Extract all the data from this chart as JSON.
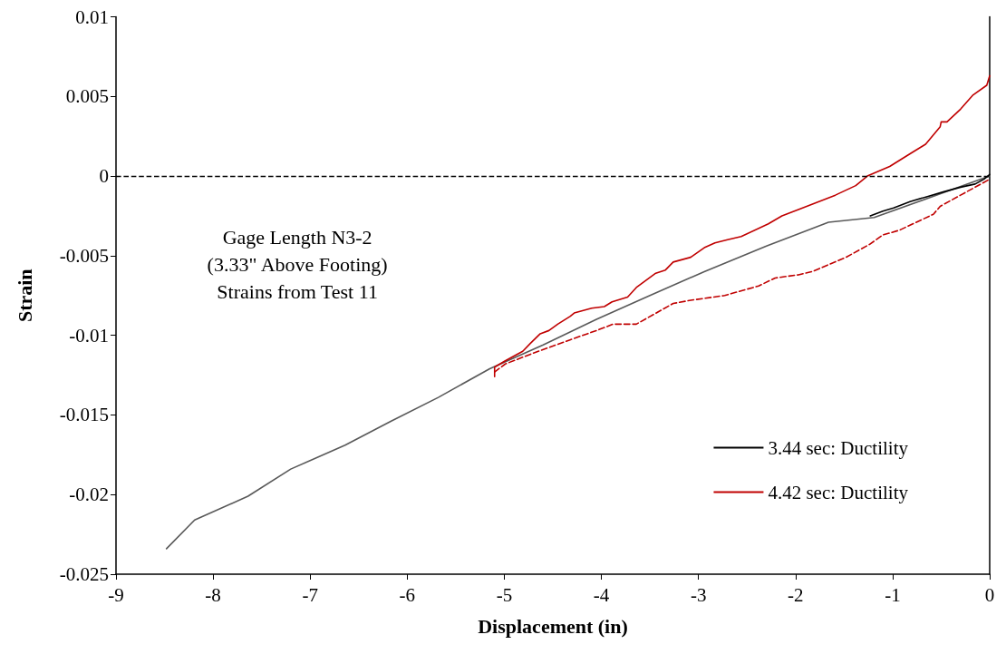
{
  "chart_data": {
    "type": "line",
    "xlabel": "Displacement (in)",
    "ylabel": "Strain",
    "xlim": [
      -9,
      0
    ],
    "xticks": [
      -9,
      -8,
      -7,
      -6,
      -5,
      -4,
      -3,
      -2,
      -1,
      0
    ],
    "ylim": [
      -0.025,
      0.01
    ],
    "yticks": [
      -0.025,
      -0.02,
      -0.015,
      -0.01,
      -0.005,
      0,
      0.005,
      0.01
    ],
    "grid": false,
    "legend": "right",
    "marker": "none",
    "annotations": [
      "Gage Length N3-2\n(3.33\" Above Footing)\nStrains from Test 11"
    ],
    "ref_lines": [
      {
        "axis": "y",
        "value": 0,
        "color": "#000000",
        "line_style": "dashed"
      }
    ],
    "series": [
      {
        "color": "#595959",
        "x": [
          -8.48,
          -8.19,
          -7.64,
          -7.2,
          -6.64,
          -6.17,
          -5.68,
          -5.15,
          -4.6,
          -4.05,
          -3.5,
          -2.94,
          -2.3,
          -1.66,
          -1.19,
          0
        ],
        "values": [
          -0.0234,
          -0.0216,
          -0.0201,
          -0.0184,
          -0.0169,
          -0.0154,
          -0.0139,
          -0.0121,
          -0.0106,
          -0.009,
          -0.0075,
          -0.006,
          -0.0044,
          -0.0029,
          -0.0026,
          0
        ]
      },
      {
        "name": "3.44 sec: Ductility",
        "color": "#000000",
        "x": [
          -1.23,
          -1.1,
          -0.99,
          -0.82,
          -0.65,
          -0.48,
          -0.3,
          -0.15,
          -0.06,
          0
        ],
        "values": [
          -0.0025,
          -0.0022,
          -0.002,
          -0.0016,
          -0.0013,
          -0.001,
          -0.0007,
          -0.0005,
          -0.0002,
          0.0001
        ]
      },
      {
        "name": "4.42 sec: Ductility",
        "color": "#c00000",
        "x": [
          -5.1,
          -5.1,
          -4.99,
          -4.81,
          -4.73,
          -4.63,
          -4.54,
          -4.45,
          -4.32,
          -4.28,
          -4.1,
          -3.97,
          -3.89,
          -3.73,
          -3.64,
          -3.44,
          -3.34,
          -3.26,
          -3.08,
          -2.94,
          -2.83,
          -2.7,
          -2.56,
          -2.28,
          -2.14,
          -1.97,
          -1.59,
          -1.45,
          -1.38,
          -1.26,
          -1.03,
          -0.82,
          -0.66,
          -0.51,
          -0.5,
          -0.44,
          -0.3,
          -0.17,
          -0.03,
          0
        ],
        "values": [
          -0.0126,
          -0.012,
          -0.0116,
          -0.011,
          -0.0105,
          -0.0099,
          -0.0097,
          -0.0093,
          -0.0088,
          -0.0086,
          -0.0083,
          -0.0082,
          -0.0079,
          -0.0076,
          -0.007,
          -0.0061,
          -0.0059,
          -0.0054,
          -0.0051,
          -0.0045,
          -0.0042,
          -0.004,
          -0.0038,
          -0.003,
          -0.0025,
          -0.0021,
          -0.0012,
          -0.0008,
          -0.0006,
          0,
          0.0006,
          0.0014,
          0.002,
          0.0031,
          0.0034,
          0.0034,
          0.0042,
          0.0051,
          0.0057,
          0.0063
        ]
      },
      {
        "color": "#c00000",
        "line_style": "dashed",
        "x": [
          -5.1,
          -4.99,
          -4.65,
          -4.33,
          -4.05,
          -3.88,
          -3.64,
          -3.26,
          -3.08,
          -2.73,
          -2.38,
          -2.21,
          -1.97,
          -1.83,
          -1.48,
          -1.24,
          -1.1,
          -0.93,
          -0.58,
          -0.51,
          -0.3,
          0
        ],
        "values": [
          -0.0123,
          -0.0118,
          -0.011,
          -0.0103,
          -0.0097,
          -0.0093,
          -0.0093,
          -0.008,
          -0.0078,
          -0.0075,
          -0.0069,
          -0.0064,
          -0.0062,
          -0.006,
          -0.0051,
          -0.0043,
          -0.0037,
          -0.0034,
          -0.0024,
          -0.0019,
          -0.0012,
          -0.0002
        ]
      }
    ]
  }
}
